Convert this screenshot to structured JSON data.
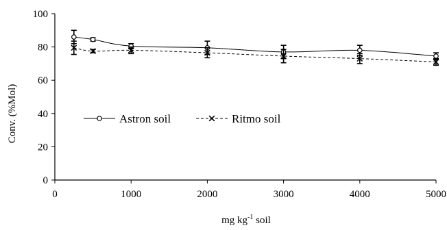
{
  "chart_data": {
    "type": "line",
    "title": "",
    "xlabel": "mg kg",
    "xlabel_superscript": "-1",
    "xlabel_suffix": " soil",
    "ylabel": "Conv. (%Mol)",
    "xlim": [
      0,
      5000
    ],
    "ylim": [
      0,
      100
    ],
    "x_ticks": [
      0,
      1000,
      2000,
      3000,
      4000,
      5000
    ],
    "y_ticks": [
      0,
      20,
      40,
      60,
      80,
      100
    ],
    "grid": false,
    "legend_position": "center-left",
    "x": [
      250,
      500,
      1000,
      2000,
      3000,
      4000,
      5000
    ],
    "series": [
      {
        "name": "Astron soil",
        "marker": "circle",
        "line_style": "solid",
        "values": [
          86,
          84.5,
          80.5,
          79.5,
          77,
          78,
          74.5
        ],
        "errors": [
          4,
          1,
          1.5,
          4,
          4,
          3,
          2
        ]
      },
      {
        "name": "Ritmo soil",
        "marker": "x",
        "line_style": "dashed",
        "values": [
          79.5,
          77.5,
          78,
          76.5,
          74.5,
          73,
          71
        ],
        "errors": [
          4,
          1,
          2,
          3,
          4,
          3,
          2
        ]
      }
    ],
    "colors": {
      "line": "#000000",
      "background": "#ffffff"
    }
  }
}
